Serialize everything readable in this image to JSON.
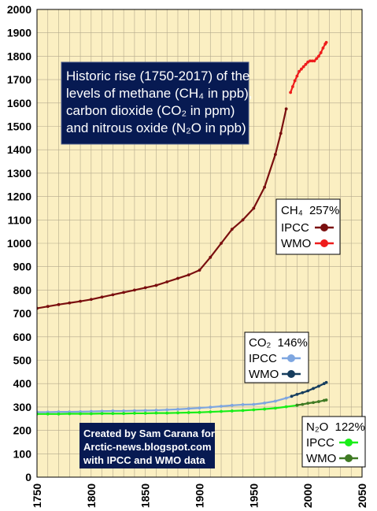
{
  "chart_data": {
    "type": "line",
    "title_lines": [
      "Historic rise (1750-2017) of the",
      "levels of methane (CH₄ in ppb),",
      "carbon dioxide (CO₂ in ppm)",
      "and nitrous oxide (N₂O in ppb)"
    ],
    "credit_lines": [
      "Created by Sam Carana for",
      "Arctic-news.blogspot.com",
      "with IPCC and WMO data"
    ],
    "xlim": [
      1750,
      2050
    ],
    "ylim": [
      0,
      2000
    ],
    "x_ticks": [
      1750,
      1800,
      1850,
      1900,
      1950,
      2000,
      2050
    ],
    "y_ticks": [
      0,
      100,
      200,
      300,
      400,
      500,
      600,
      700,
      800,
      900,
      1000,
      1100,
      1200,
      1300,
      1400,
      1500,
      1600,
      1700,
      1800,
      1900,
      2000
    ],
    "grid": true,
    "background_color": "#fbefc2",
    "grid_color": "#b4a98c",
    "groups": [
      {
        "gas": "CH₄",
        "increase": "257%",
        "legend_placement": "right",
        "series": [
          {
            "name": "IPCC",
            "color": "#7a0f0f",
            "x": [
              1750,
              1760,
              1770,
              1780,
              1790,
              1800,
              1810,
              1820,
              1830,
              1840,
              1850,
              1860,
              1870,
              1880,
              1890,
              1900,
              1910,
              1920,
              1930,
              1940,
              1950,
              1960,
              1970,
              1975,
              1980
            ],
            "y": [
              722,
              730,
              738,
              745,
              752,
              760,
              770,
              780,
              790,
              800,
              810,
              820,
              835,
              850,
              865,
              885,
              940,
              1000,
              1060,
              1100,
              1150,
              1240,
              1380,
              1470,
              1575
            ]
          },
          {
            "name": "WMO",
            "color": "#ee1c1c",
            "x": [
              1984,
              1986,
              1988,
              1990,
              1992,
              1994,
              1996,
              1998,
              2000,
              2002,
              2004,
              2006,
              2008,
              2010,
              2012,
              2014,
              2016,
              2017
            ],
            "y": [
              1645,
              1670,
              1695,
              1715,
              1735,
              1745,
              1755,
              1765,
              1775,
              1780,
              1780,
              1780,
              1790,
              1800,
              1815,
              1835,
              1852,
              1859
            ]
          }
        ]
      },
      {
        "gas": "CO₂",
        "increase": "146%",
        "legend_placement": "right",
        "series": [
          {
            "name": "IPCC",
            "color": "#7ea6e0",
            "x": [
              1750,
              1760,
              1770,
              1780,
              1790,
              1800,
              1810,
              1820,
              1830,
              1840,
              1850,
              1860,
              1870,
              1880,
              1890,
              1900,
              1910,
              1920,
              1930,
              1940,
              1950,
              1960,
              1970,
              1980,
              1985
            ],
            "y": [
              278,
              278,
              279,
              279,
              280,
              281,
              282,
              283,
              283,
              284,
              285,
              286,
              288,
              290,
              293,
              296,
              299,
              303,
              307,
              310,
              311,
              317,
              325,
              338,
              345
            ]
          },
          {
            "name": "WMO",
            "color": "#163d5e",
            "x": [
              1985,
              1990,
              1995,
              2000,
              2005,
              2010,
              2015,
              2017
            ],
            "y": [
              346,
              354,
              361,
              369,
              379,
              389,
              400,
              405
            ]
          }
        ]
      },
      {
        "gas": "N₂O",
        "increase": "122%",
        "legend_placement": "bottom-right",
        "series": [
          {
            "name": "IPCC",
            "color": "#19ee19",
            "x": [
              1750,
              1760,
              1770,
              1780,
              1790,
              1800,
              1810,
              1820,
              1830,
              1840,
              1850,
              1860,
              1870,
              1880,
              1890,
              1900,
              1910,
              1920,
              1930,
              1940,
              1950,
              1960,
              1970,
              1980,
              1990
            ],
            "y": [
              270,
              270,
              270,
              271,
              271,
              271,
              272,
              272,
              272,
              273,
              273,
              274,
              274,
              275,
              276,
              277,
              279,
              281,
              283,
              285,
              288,
              291,
              295,
              301,
              307
            ]
          },
          {
            "name": "WMO",
            "color": "#3f7a23",
            "x": [
              1990,
              1995,
              2000,
              2005,
              2010,
              2015,
              2017
            ],
            "y": [
              308,
              311,
              316,
              319,
              323,
              328,
              330
            ]
          }
        ]
      }
    ]
  }
}
